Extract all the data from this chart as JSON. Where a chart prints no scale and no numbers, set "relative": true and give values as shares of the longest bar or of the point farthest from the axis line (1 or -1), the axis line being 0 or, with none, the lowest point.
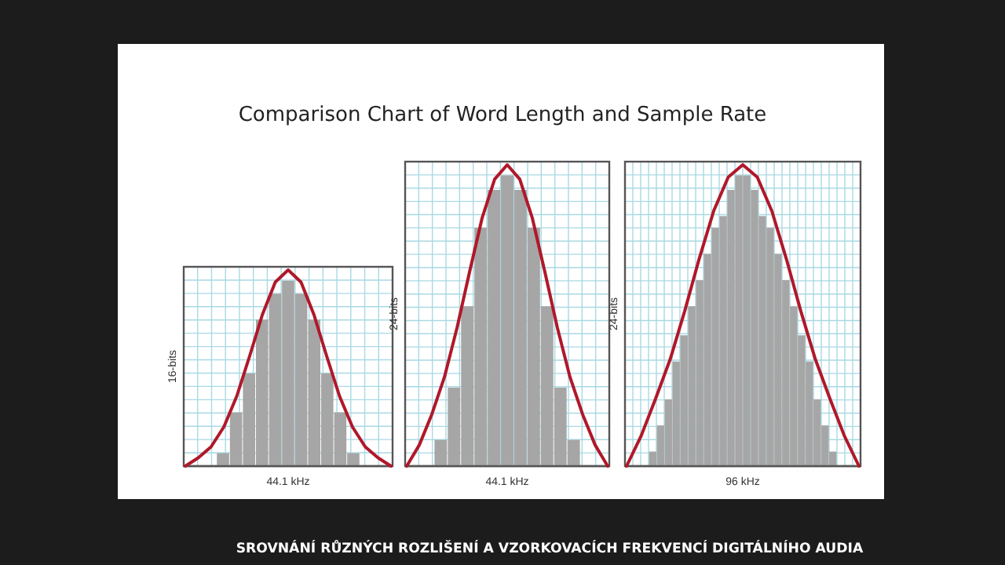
{
  "chart_data": [
    {
      "type": "bar",
      "title": "Comparison Chart of Word Length and Sample Rate",
      "xlabel": "44.1 kHz",
      "ylabel": "16-bits",
      "relative": true,
      "grid": true,
      "annotations": [
        "SROVNÁNÍ RŮZNÝCH ROZLIŠENÍ A VZORKOVACÍCH FREKVENCÍ DIGITÁLNÍHO AUDIA"
      ],
      "categories": [
        null,
        null,
        null,
        null,
        null,
        null,
        null,
        null,
        null,
        null,
        null
      ],
      "color": "#a6a6a6",
      "values": [
        0.07,
        0.29,
        0.5,
        0.79,
        0.93,
        1,
        0.93,
        0.79,
        0.5,
        0.29,
        0.07
      ]
    },
    {
      "type": "line",
      "relative": true,
      "categories": [
        null,
        null,
        null,
        null,
        null,
        null,
        null,
        null,
        null,
        null,
        null,
        null,
        null,
        null,
        null,
        null,
        null
      ],
      "color": "#b0182a",
      "values": [
        0,
        0.042,
        0.098,
        0.2,
        0.356,
        0.56,
        0.773,
        0.938,
        1,
        0.938,
        0.773,
        0.56,
        0.356,
        0.2,
        0.098,
        0.042,
        0
      ]
    },
    {
      "type": "bar",
      "xlabel": "44.1 kHz",
      "ylabel": "24-bits",
      "relative": true,
      "grid": true,
      "categories": [
        null,
        null,
        null,
        null,
        null,
        null,
        null,
        null,
        null,
        null,
        null
      ],
      "color": "#a6a6a6",
      "values": [
        0.09,
        0.27,
        0.55,
        0.82,
        0.95,
        1,
        0.95,
        0.82,
        0.55,
        0.27,
        0.09
      ]
    },
    {
      "type": "line",
      "relative": true,
      "categories": [
        null,
        null,
        null,
        null,
        null,
        null,
        null,
        null,
        null,
        null,
        null,
        null,
        null,
        null,
        null,
        null,
        null
      ],
      "color": "#b0182a",
      "values": [
        0,
        0.07,
        0.172,
        0.295,
        0.458,
        0.644,
        0.823,
        0.952,
        1,
        0.952,
        0.823,
        0.644,
        0.458,
        0.295,
        0.172,
        0.07,
        0
      ]
    },
    {
      "type": "bar",
      "xlabel": "96 kHz",
      "ylabel": "24-bits",
      "relative": true,
      "grid": true,
      "categories": [
        null,
        null,
        null,
        null,
        null,
        null,
        null,
        null,
        null,
        null,
        null,
        null,
        null,
        null,
        null,
        null,
        null,
        null,
        null,
        null,
        null,
        null,
        null,
        null
      ],
      "color": "#a6a6a6",
      "values": [
        0.05,
        0.14,
        0.23,
        0.36,
        0.45,
        0.55,
        0.64,
        0.73,
        0.82,
        0.86,
        0.95,
        1,
        1,
        0.95,
        0.86,
        0.82,
        0.73,
        0.64,
        0.55,
        0.45,
        0.36,
        0.23,
        0.14,
        0.05
      ]
    },
    {
      "type": "line",
      "relative": true,
      "categories": [
        null,
        null,
        null,
        null,
        null,
        null,
        null,
        null,
        null,
        null,
        null,
        null,
        null,
        null,
        null,
        null,
        null
      ],
      "color": "#b0182a",
      "values": [
        0,
        0.1,
        0.224,
        0.354,
        0.514,
        0.688,
        0.847,
        0.959,
        1,
        0.959,
        0.847,
        0.688,
        0.514,
        0.354,
        0.224,
        0.1,
        0
      ]
    }
  ]
}
